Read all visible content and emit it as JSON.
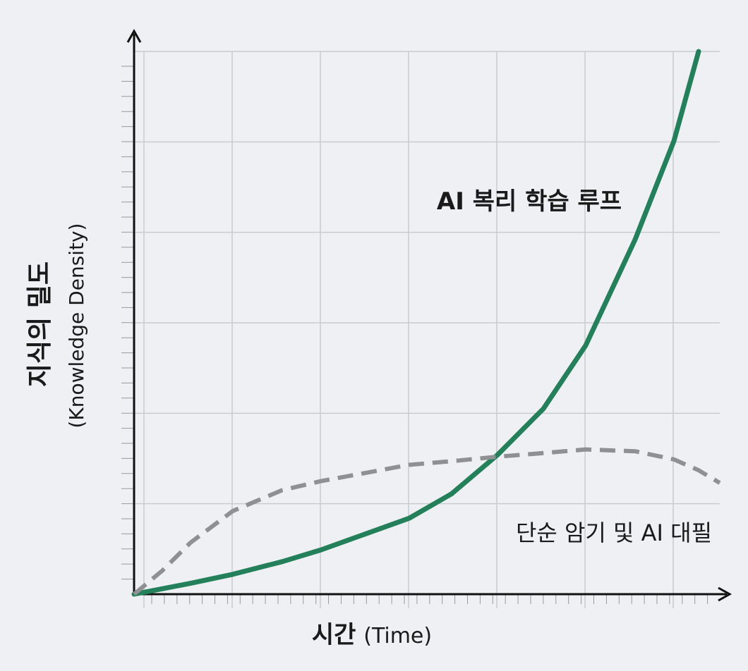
{
  "chart_data": {
    "type": "line",
    "x_label": "시간",
    "x_label_sub": "(Time)",
    "y_label": "지식의 밀도",
    "y_label_sub": "(Knowledge Density)",
    "x": [
      0,
      0.32,
      0.64,
      1.12,
      1.68,
      2.12,
      3.12,
      3.6,
      4.12,
      4.64,
      5.12,
      5.68,
      6.12,
      6.4,
      6.64
    ],
    "xlim": [
      0,
      6.64
    ],
    "ylim": [
      0,
      6
    ],
    "grid": true,
    "series": [
      {
        "name": "AI 복리 학습 루프",
        "color": "#23805a",
        "dashed": false,
        "values": [
          0,
          0.06,
          0.12,
          0.22,
          0.36,
          0.49,
          0.84,
          1.11,
          1.54,
          2.05,
          2.75,
          3.92,
          5.01,
          6.0,
          null
        ]
      },
      {
        "name": "단순 암기 및 AI 대필",
        "color": "#8e9094",
        "dashed": true,
        "values": [
          0,
          0.26,
          0.57,
          0.92,
          1.15,
          1.25,
          1.43,
          1.47,
          1.52,
          1.56,
          1.6,
          1.58,
          1.49,
          1.37,
          1.23
        ]
      }
    ]
  }
}
